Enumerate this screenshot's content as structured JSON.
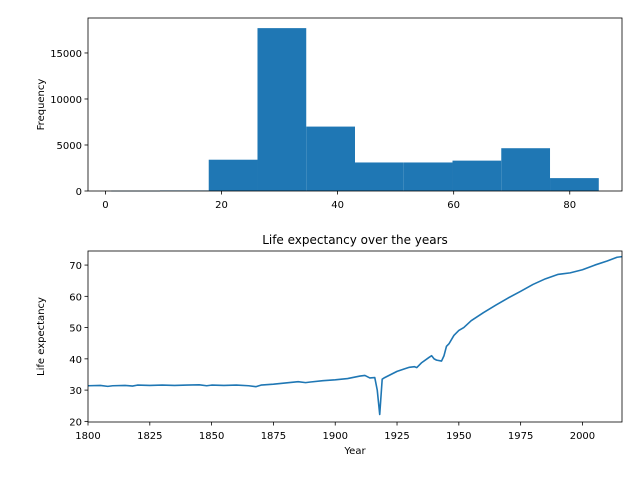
{
  "chart_data": [
    {
      "type": "bar",
      "title": "",
      "xlabel": "",
      "ylabel": "Frequency",
      "color": "#1f77b4",
      "xlim": [
        -3,
        89
      ],
      "ylim": [
        0,
        18800
      ],
      "xticks": [
        0,
        20,
        40,
        60,
        80
      ],
      "yticks": [
        0,
        5000,
        10000,
        15000
      ],
      "bins": [
        {
          "x0": 1.0,
          "x1": 9.4,
          "count": 30
        },
        {
          "x0": 9.4,
          "x1": 17.8,
          "count": 60
        },
        {
          "x0": 17.8,
          "x1": 26.2,
          "count": 3400
        },
        {
          "x0": 26.2,
          "x1": 34.6,
          "count": 17700
        },
        {
          "x0": 34.6,
          "x1": 43.0,
          "count": 7000
        },
        {
          "x0": 43.0,
          "x1": 51.4,
          "count": 3100
        },
        {
          "x0": 51.4,
          "x1": 59.8,
          "count": 3100
        },
        {
          "x0": 59.8,
          "x1": 68.2,
          "count": 3300
        },
        {
          "x0": 68.2,
          "x1": 76.6,
          "count": 4650
        },
        {
          "x0": 76.6,
          "x1": 85.0,
          "count": 1400
        }
      ]
    },
    {
      "type": "line",
      "title": "Life expectancy over the years",
      "xlabel": "Year",
      "ylabel": "Life expectancy",
      "color": "#1f77b4",
      "xlim": [
        1800,
        2016
      ],
      "ylim": [
        19.8,
        74.5
      ],
      "xticks": [
        1800,
        1825,
        1850,
        1875,
        1900,
        1925,
        1950,
        1975,
        2000
      ],
      "yticks": [
        20,
        30,
        40,
        50,
        60,
        70
      ],
      "x": [
        1800,
        1805,
        1808,
        1810,
        1815,
        1818,
        1820,
        1825,
        1830,
        1835,
        1840,
        1845,
        1848,
        1850,
        1855,
        1860,
        1865,
        1868,
        1870,
        1875,
        1880,
        1885,
        1888,
        1890,
        1895,
        1900,
        1905,
        1910,
        1912,
        1914,
        1916,
        1917,
        1918,
        1919,
        1920,
        1922,
        1925,
        1928,
        1930,
        1932,
        1933,
        1935,
        1938,
        1939,
        1940,
        1941,
        1943,
        1944,
        1945,
        1946,
        1948,
        1950,
        1952,
        1955,
        1960,
        1965,
        1970,
        1975,
        1980,
        1985,
        1990,
        1992,
        1995,
        2000,
        2005,
        2010,
        2014,
        2016
      ],
      "y": [
        31.4,
        31.5,
        31.2,
        31.4,
        31.5,
        31.3,
        31.6,
        31.5,
        31.6,
        31.5,
        31.6,
        31.7,
        31.4,
        31.6,
        31.5,
        31.6,
        31.4,
        31.1,
        31.6,
        31.9,
        32.3,
        32.7,
        32.4,
        32.6,
        33.0,
        33.3,
        33.7,
        34.5,
        34.7,
        33.9,
        34.0,
        30.0,
        22.2,
        33.5,
        34.0,
        34.8,
        36.0,
        36.8,
        37.3,
        37.5,
        37.2,
        38.8,
        40.5,
        41.0,
        40.0,
        39.6,
        39.3,
        41.0,
        44.0,
        44.8,
        47.5,
        49.1,
        50.0,
        52.2,
        54.8,
        57.2,
        59.5,
        61.6,
        63.8,
        65.6,
        67.0,
        67.2,
        67.5,
        68.5,
        70.0,
        71.3,
        72.5,
        72.7
      ]
    }
  ]
}
